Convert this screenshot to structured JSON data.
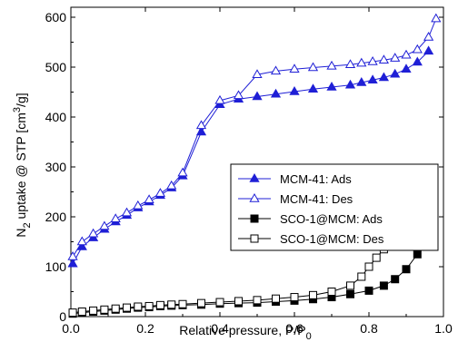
{
  "chart_data": {
    "type": "scatter",
    "xlabel": "Relative pressure, P/P",
    "xlabel_sub": "0",
    "ylabel_parts": {
      "a": "N",
      "b": "2",
      "c": " uptake @ STP [cm",
      "d": "3",
      "e": "/g]"
    },
    "xlim": [
      0.0,
      1.0
    ],
    "ylim": [
      0,
      620
    ],
    "x_ticks": [
      {
        "value": 0.0,
        "label": "0.0"
      },
      {
        "value": 0.2,
        "label": "0.2"
      },
      {
        "value": 0.4,
        "label": "0.4"
      },
      {
        "value": 0.6,
        "label": "0.6"
      },
      {
        "value": 0.8,
        "label": "0.8"
      },
      {
        "value": 1.0,
        "label": "1.0"
      }
    ],
    "y_ticks": [
      {
        "value": 0,
        "label": "0"
      },
      {
        "value": 100,
        "label": "100"
      },
      {
        "value": 200,
        "label": "200"
      },
      {
        "value": 300,
        "label": "300"
      },
      {
        "value": 400,
        "label": "400"
      },
      {
        "value": 500,
        "label": "500"
      },
      {
        "value": 600,
        "label": "600"
      }
    ],
    "legend_position": "right-center",
    "series": [
      {
        "name": "MCM-41: Ads",
        "color": "#1f1fd6",
        "marker": "triangle",
        "filled": true,
        "points": [
          [
            0.005,
            106
          ],
          [
            0.03,
            140
          ],
          [
            0.06,
            158
          ],
          [
            0.09,
            175
          ],
          [
            0.12,
            190
          ],
          [
            0.15,
            203
          ],
          [
            0.18,
            218
          ],
          [
            0.21,
            230
          ],
          [
            0.24,
            243
          ],
          [
            0.27,
            258
          ],
          [
            0.3,
            282
          ],
          [
            0.35,
            370
          ],
          [
            0.4,
            425
          ],
          [
            0.45,
            436
          ],
          [
            0.5,
            441
          ],
          [
            0.55,
            446
          ],
          [
            0.6,
            451
          ],
          [
            0.65,
            456
          ],
          [
            0.7,
            460
          ],
          [
            0.75,
            464
          ],
          [
            0.78,
            469
          ],
          [
            0.81,
            474
          ],
          [
            0.84,
            479
          ],
          [
            0.87,
            486
          ],
          [
            0.9,
            496
          ],
          [
            0.93,
            510
          ],
          [
            0.96,
            532
          ]
        ]
      },
      {
        "name": "MCM-41: Des",
        "color": "#1f1fd6",
        "marker": "triangle",
        "filled": false,
        "points": [
          [
            0.005,
            120
          ],
          [
            0.03,
            150
          ],
          [
            0.06,
            166
          ],
          [
            0.09,
            181
          ],
          [
            0.12,
            196
          ],
          [
            0.15,
            208
          ],
          [
            0.18,
            222
          ],
          [
            0.21,
            234
          ],
          [
            0.24,
            247
          ],
          [
            0.27,
            262
          ],
          [
            0.3,
            288
          ],
          [
            0.35,
            383
          ],
          [
            0.4,
            433
          ],
          [
            0.45,
            443
          ],
          [
            0.5,
            485
          ],
          [
            0.55,
            492
          ],
          [
            0.6,
            496
          ],
          [
            0.65,
            499
          ],
          [
            0.7,
            502
          ],
          [
            0.75,
            505
          ],
          [
            0.78,
            508
          ],
          [
            0.81,
            511
          ],
          [
            0.84,
            514
          ],
          [
            0.87,
            518
          ],
          [
            0.9,
            524
          ],
          [
            0.93,
            535
          ],
          [
            0.96,
            560
          ],
          [
            0.98,
            597
          ]
        ]
      },
      {
        "name": "SCO-1@MCM: Ads",
        "color": "#000000",
        "marker": "square",
        "filled": true,
        "points": [
          [
            0.005,
            6
          ],
          [
            0.03,
            8
          ],
          [
            0.06,
            10
          ],
          [
            0.09,
            12
          ],
          [
            0.12,
            14
          ],
          [
            0.15,
            16
          ],
          [
            0.18,
            18
          ],
          [
            0.21,
            19
          ],
          [
            0.24,
            21
          ],
          [
            0.27,
            22
          ],
          [
            0.3,
            23
          ],
          [
            0.35,
            24
          ],
          [
            0.4,
            26
          ],
          [
            0.45,
            27
          ],
          [
            0.5,
            28
          ],
          [
            0.55,
            30
          ],
          [
            0.6,
            32
          ],
          [
            0.65,
            35
          ],
          [
            0.7,
            39
          ],
          [
            0.75,
            45
          ],
          [
            0.8,
            52
          ],
          [
            0.84,
            62
          ],
          [
            0.87,
            75
          ],
          [
            0.9,
            95
          ],
          [
            0.93,
            125
          ],
          [
            0.96,
            158
          ]
        ]
      },
      {
        "name": "SCO-1@MCM: Des",
        "color": "#000000",
        "marker": "square",
        "filled": false,
        "points": [
          [
            0.005,
            8
          ],
          [
            0.03,
            10
          ],
          [
            0.06,
            12
          ],
          [
            0.09,
            14
          ],
          [
            0.12,
            16
          ],
          [
            0.15,
            18
          ],
          [
            0.18,
            20
          ],
          [
            0.21,
            21
          ],
          [
            0.24,
            23
          ],
          [
            0.27,
            24
          ],
          [
            0.3,
            25
          ],
          [
            0.35,
            27
          ],
          [
            0.4,
            29
          ],
          [
            0.45,
            31
          ],
          [
            0.5,
            33
          ],
          [
            0.55,
            36
          ],
          [
            0.6,
            39
          ],
          [
            0.65,
            43
          ],
          [
            0.7,
            50
          ],
          [
            0.75,
            62
          ],
          [
            0.78,
            80
          ],
          [
            0.8,
            100
          ],
          [
            0.82,
            118
          ],
          [
            0.84,
            135
          ],
          [
            0.86,
            150
          ],
          [
            0.88,
            158
          ],
          [
            0.91,
            162
          ],
          [
            0.94,
            164
          ],
          [
            0.97,
            164
          ]
        ]
      }
    ]
  }
}
